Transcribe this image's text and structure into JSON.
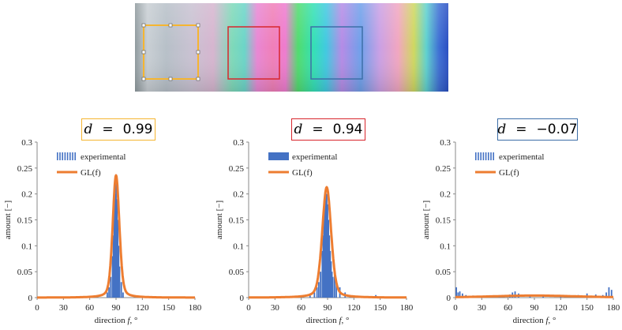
{
  "colors": {
    "box_left": "#f5b531",
    "box_middle": "#d8262d",
    "box_right": "#3d6fa8",
    "experimental": "#4472c4",
    "gl_fit": "#ed7d31"
  },
  "image_strip": {
    "description_hidden": true
  },
  "chart_data": [
    {
      "type": "bar",
      "badge": "d = 0.99",
      "badge_var": "d",
      "badge_value": "0.99",
      "badge_color": "#f5b531",
      "xlabel_prefix": "direction",
      "xlabel_var": "f",
      "xlabel_unit": "°",
      "ylabel": "amount [−]",
      "xlim": [
        0,
        180
      ],
      "ylim": [
        0,
        0.3
      ],
      "xticks": [
        "0",
        "30",
        "60",
        "90",
        "120",
        "150",
        "180"
      ],
      "yticks": [
        "0",
        "0.05",
        "0.1",
        "0.15",
        "0.2",
        "0.25",
        "0.3"
      ],
      "legend": [
        "experimental",
        "GL(f)"
      ],
      "legend_style": "dashed",
      "series": [
        {
          "name": "experimental",
          "x": [
            80,
            82,
            84,
            86,
            87,
            88,
            89,
            90,
            91,
            92,
            93,
            94,
            96,
            98
          ],
          "values": [
            0.01,
            0.02,
            0.04,
            0.08,
            0.12,
            0.17,
            0.2,
            0.22,
            0.19,
            0.15,
            0.1,
            0.06,
            0.03,
            0.01
          ]
        },
        {
          "name": "GL(f)",
          "center": 90,
          "peak": 0.236,
          "width": 4.5,
          "eta": 0.3
        }
      ]
    },
    {
      "type": "bar",
      "badge": "d = 0.94",
      "badge_var": "d",
      "badge_value": "0.94",
      "badge_color": "#d8262d",
      "xlabel_prefix": "direction",
      "xlabel_var": "f",
      "xlabel_unit": "°",
      "ylabel": "amount [−]",
      "xlim": [
        0,
        180
      ],
      "ylim": [
        0,
        0.3
      ],
      "xticks": [
        "0",
        "30",
        "60",
        "90",
        "120",
        "150",
        "180"
      ],
      "yticks": [
        "0",
        "0.05",
        "0.1",
        "0.15",
        "0.2",
        "0.25",
        "0.3"
      ],
      "legend": [
        "experimental",
        "GL(f)"
      ],
      "legend_style": "solid",
      "series": [
        {
          "name": "experimental",
          "x": [
            70,
            75,
            78,
            80,
            82,
            84,
            85,
            86,
            87,
            88,
            89,
            90,
            91,
            92,
            93,
            94,
            95,
            96,
            98,
            100,
            104,
            110,
            145
          ],
          "values": [
            0.005,
            0.01,
            0.02,
            0.03,
            0.05,
            0.09,
            0.12,
            0.16,
            0.19,
            0.21,
            0.2,
            0.18,
            0.15,
            0.12,
            0.09,
            0.07,
            0.05,
            0.04,
            0.05,
            0.03,
            0.02,
            0.01,
            0.005
          ]
        },
        {
          "name": "GL(f)",
          "center": 89,
          "peak": 0.213,
          "width": 6,
          "eta": 0.3
        }
      ]
    },
    {
      "type": "bar",
      "badge": "d = −0.07",
      "badge_var": "d",
      "badge_value": "−0.07",
      "badge_color": "#3d6fa8",
      "xlabel_prefix": "direction",
      "xlabel_var": "f",
      "xlabel_unit": "°",
      "ylabel": "amount [−]",
      "xlim": [
        0,
        180
      ],
      "ylim": [
        0,
        0.3
      ],
      "xticks": [
        "0",
        "30",
        "60",
        "90",
        "120",
        "150",
        "180"
      ],
      "yticks": [
        "0",
        "0.05",
        "0.1",
        "0.15",
        "0.2",
        "0.25",
        "0.3"
      ],
      "legend": [
        "experimental",
        "GL(f)"
      ],
      "legend_style": "dashed",
      "series": [
        {
          "name": "experimental",
          "x": [
            1,
            3,
            5,
            8,
            12,
            20,
            35,
            50,
            62,
            65,
            68,
            72,
            85,
            100,
            120,
            140,
            150,
            160,
            168,
            172,
            175,
            178
          ],
          "values": [
            0.02,
            0.01,
            0.012,
            0.008,
            0.005,
            0.004,
            0.003,
            0.004,
            0.006,
            0.01,
            0.012,
            0.008,
            0.003,
            0.003,
            0.004,
            0.005,
            0.008,
            0.006,
            0.005,
            0.01,
            0.02,
            0.015
          ]
        },
        {
          "name": "GL(f)",
          "center": 90,
          "peak": 0.004,
          "width": 60,
          "eta": 0.5
        }
      ]
    }
  ]
}
